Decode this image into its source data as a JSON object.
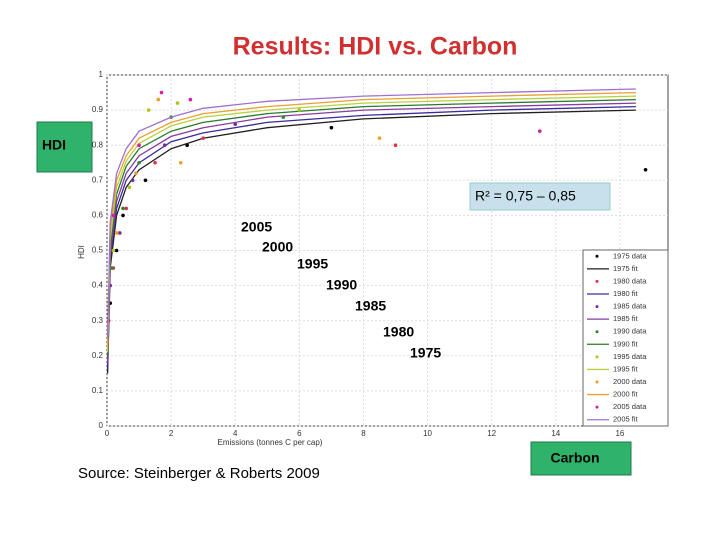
{
  "title": "Results: HDI vs. Carbon",
  "source": "Source: Steinberger & Roberts 2009",
  "callouts": {
    "y": "HDI",
    "x": "Carbon",
    "r2": "R² = 0,75 – 0,85"
  },
  "annotations": [
    "2005",
    "2000",
    "1995",
    "1990",
    "1985",
    "1980",
    "1975"
  ],
  "chart_data": {
    "type": "line",
    "xlabel": "Emissions (tonnes C per cap)",
    "ylabel": "HDI",
    "xlim": [
      0,
      17.5
    ],
    "ylim": [
      0,
      1
    ],
    "xticks": [
      0,
      2,
      4,
      6,
      8,
      10,
      12,
      14,
      16
    ],
    "yticks": [
      0,
      0.1,
      0.2,
      0.3,
      0.4,
      0.5,
      0.6,
      0.7,
      0.8,
      0.9,
      1
    ],
    "grid": true,
    "series": [
      {
        "name": "1975 data",
        "type": "scatter",
        "color": "#000000",
        "x": [
          0.1,
          0.3,
          0.5,
          1.2,
          2.5,
          7,
          16.8
        ],
        "values": [
          0.35,
          0.5,
          0.6,
          0.7,
          0.8,
          0.85,
          0.73
        ]
      },
      {
        "name": "1975 fit",
        "type": "line",
        "color": "#202020",
        "x": [
          0.02,
          0.1,
          0.3,
          0.6,
          1,
          2,
          3,
          5,
          8,
          12,
          16.5
        ],
        "values": [
          0.15,
          0.45,
          0.6,
          0.68,
          0.73,
          0.79,
          0.82,
          0.85,
          0.875,
          0.89,
          0.9
        ]
      },
      {
        "name": "1980 data",
        "type": "scatter",
        "color": "#e0304a",
        "x": [
          0.05,
          0.2,
          0.6,
          1.5,
          3,
          9
        ],
        "values": [
          0.3,
          0.45,
          0.62,
          0.75,
          0.82,
          0.8
        ]
      },
      {
        "name": "1980 fit",
        "type": "line",
        "color": "#3a2a9a",
        "x": [
          0.02,
          0.1,
          0.3,
          0.6,
          1,
          2,
          3,
          5,
          8,
          12,
          16.5
        ],
        "values": [
          0.16,
          0.47,
          0.62,
          0.7,
          0.75,
          0.81,
          0.835,
          0.865,
          0.885,
          0.9,
          0.91
        ]
      },
      {
        "name": "1985 data",
        "type": "scatter",
        "color": "#7a2a9a",
        "x": [
          0.1,
          0.4,
          0.8,
          1.8,
          4
        ],
        "values": [
          0.4,
          0.55,
          0.7,
          0.8,
          0.86
        ]
      },
      {
        "name": "1985 fit",
        "type": "line",
        "color": "#8a3aa0",
        "x": [
          0.02,
          0.1,
          0.3,
          0.6,
          1,
          2,
          3,
          5,
          8,
          12,
          16.5
        ],
        "values": [
          0.18,
          0.49,
          0.64,
          0.72,
          0.77,
          0.825,
          0.85,
          0.88,
          0.9,
          0.91,
          0.92
        ]
      },
      {
        "name": "1990 data",
        "type": "scatter",
        "color": "#2a8a2a",
        "x": [
          0.15,
          0.5,
          1,
          2,
          5.5
        ],
        "values": [
          0.45,
          0.62,
          0.75,
          0.88,
          0.88
        ]
      },
      {
        "name": "1990 fit",
        "type": "line",
        "color": "#2a7a2a",
        "x": [
          0.02,
          0.1,
          0.3,
          0.6,
          1,
          2,
          3,
          5,
          8,
          12,
          16.5
        ],
        "values": [
          0.2,
          0.51,
          0.66,
          0.74,
          0.79,
          0.84,
          0.865,
          0.89,
          0.91,
          0.92,
          0.93
        ]
      },
      {
        "name": "1995 data",
        "type": "scatter",
        "color": "#a8c820",
        "x": [
          0.2,
          0.7,
          1.3,
          2.2,
          6
        ],
        "values": [
          0.5,
          0.68,
          0.9,
          0.92,
          0.9
        ]
      },
      {
        "name": "1995 fit",
        "type": "line",
        "color": "#b8d040",
        "x": [
          0.02,
          0.1,
          0.3,
          0.6,
          1,
          2,
          3,
          5,
          8,
          12,
          16.5
        ],
        "values": [
          0.21,
          0.53,
          0.68,
          0.755,
          0.805,
          0.855,
          0.88,
          0.9,
          0.92,
          0.93,
          0.94
        ]
      },
      {
        "name": "2000 data",
        "type": "scatter",
        "color": "#f0a020",
        "x": [
          0.3,
          0.9,
          1.6,
          2.3,
          8.5
        ],
        "values": [
          0.55,
          0.72,
          0.93,
          0.75,
          0.82
        ]
      },
      {
        "name": "2000 fit",
        "type": "line",
        "color": "#e8a030",
        "x": [
          0.02,
          0.1,
          0.3,
          0.6,
          1,
          2,
          3,
          5,
          8,
          12,
          16.5
        ],
        "values": [
          0.23,
          0.56,
          0.7,
          0.77,
          0.82,
          0.865,
          0.89,
          0.91,
          0.93,
          0.94,
          0.95
        ]
      },
      {
        "name": "2005 data",
        "type": "scatter",
        "color": "#d020a0",
        "x": [
          0.2,
          1,
          1.7,
          2.6,
          13.5
        ],
        "values": [
          0.6,
          0.8,
          0.95,
          0.93,
          0.84
        ]
      },
      {
        "name": "2005 fit",
        "type": "line",
        "color": "#a070d0",
        "x": [
          0.02,
          0.1,
          0.3,
          0.6,
          1,
          2,
          3,
          5,
          8,
          12,
          16.5
        ],
        "values": [
          0.25,
          0.58,
          0.72,
          0.79,
          0.84,
          0.88,
          0.905,
          0.925,
          0.94,
          0.95,
          0.96
        ]
      }
    ]
  }
}
